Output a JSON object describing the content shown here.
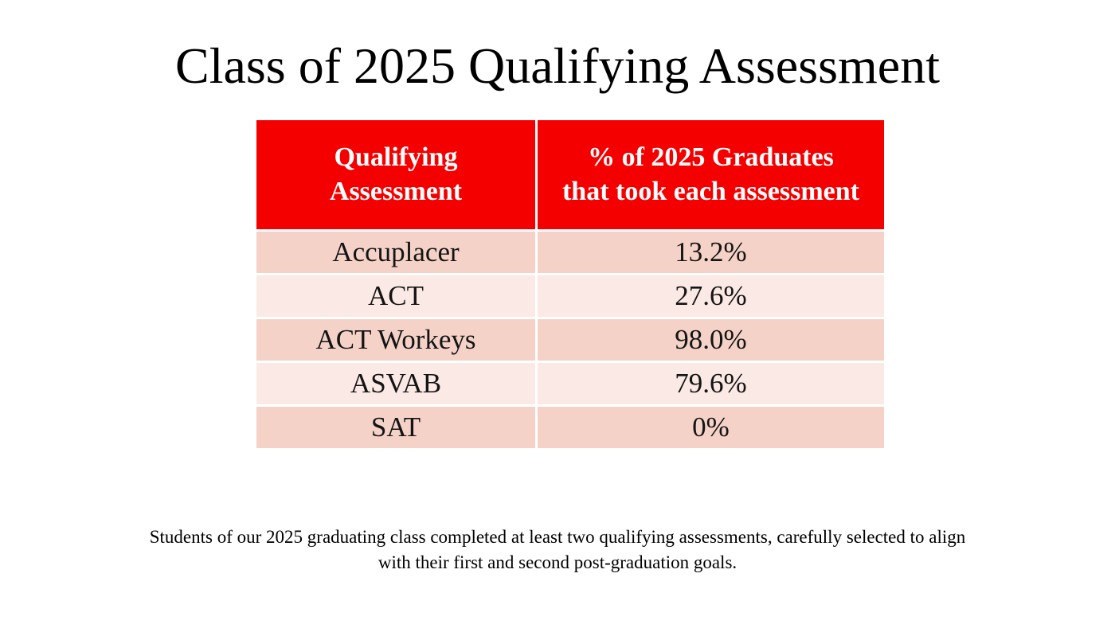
{
  "slide": {
    "title": "Class of 2025 Qualifying Assessment",
    "footer": "Students of our 2025 graduating class completed at least two qualifying assessments, carefully selected to align with their first and second post-graduation goals."
  },
  "table": {
    "headers": {
      "assessment": "Qualifying Assessment",
      "percentage": "% of 2025 Graduates that took each assessment"
    },
    "rows": [
      {
        "assessment": "Accuplacer",
        "percentage": "13.2%"
      },
      {
        "assessment": "ACT",
        "percentage": "27.6%"
      },
      {
        "assessment": "ACT Workeys",
        "percentage": "98.0%"
      },
      {
        "assessment": "ASVAB",
        "percentage": "79.6%"
      },
      {
        "assessment": "SAT",
        "percentage": "0%"
      }
    ]
  },
  "colors": {
    "header_red": "#F40000",
    "row_band_dark": "#F5D2C8",
    "row_band_light": "#FBE9E5",
    "header_text": "#FFFFFF",
    "body_text": "#000000"
  },
  "chart_data": {
    "type": "table",
    "title": "Class of 2025 Qualifying Assessment",
    "columns": [
      "Qualifying Assessment",
      "% of 2025 Graduates that took each assessment"
    ],
    "categories": [
      "Accuplacer",
      "ACT",
      "ACT Workeys",
      "ASVAB",
      "SAT"
    ],
    "values": [
      13.2,
      27.6,
      98.0,
      79.6,
      0
    ],
    "note": "Students of our 2025 graduating class completed at least two qualifying assessments, carefully selected to align with their first and second post-graduation goals."
  }
}
